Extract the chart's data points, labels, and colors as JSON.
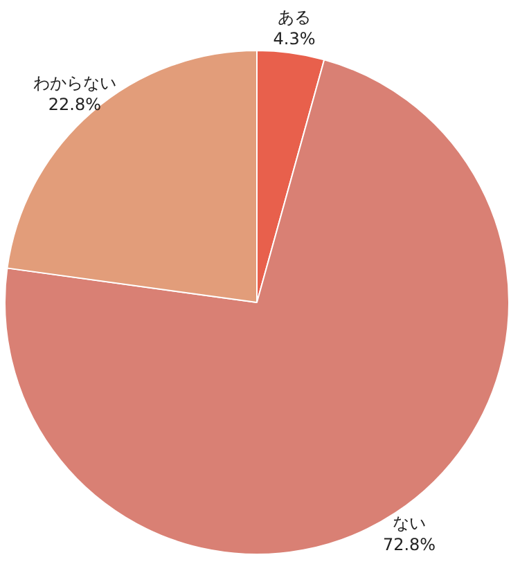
{
  "chart_data": {
    "type": "pie",
    "categories": [
      "ある",
      "ない",
      "わからない"
    ],
    "values": [
      4.3,
      72.8,
      22.8
    ],
    "colors": [
      "#e8604c",
      "#d98074",
      "#e29d7a"
    ],
    "value_labels": [
      "4.3%",
      "72.8%",
      "22.8%"
    ]
  }
}
